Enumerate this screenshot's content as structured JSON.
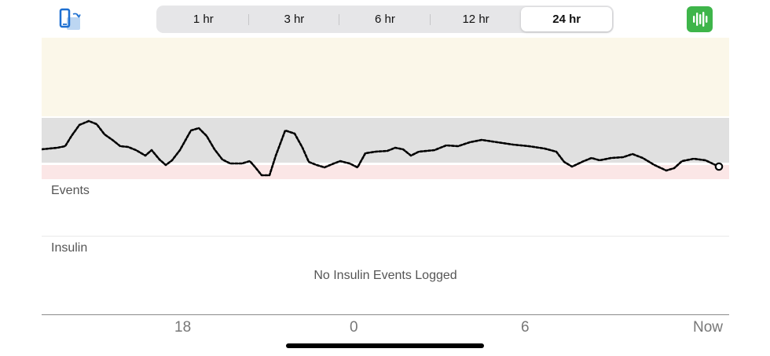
{
  "toolbar": {
    "rotate_icon": "phone-rotate-icon",
    "ranges": [
      {
        "label": "1 hr",
        "active": false
      },
      {
        "label": "3 hr",
        "active": false
      },
      {
        "label": "6 hr",
        "active": false
      },
      {
        "label": "12 hr",
        "active": false
      },
      {
        "label": "24 hr",
        "active": true
      }
    ],
    "sound_icon": "waveform-icon",
    "sound_color": "#3eb54a"
  },
  "colors": {
    "high_band": "#fbf7e9",
    "in_range_band": "#e0e0e0",
    "low_band": "#fbe6e6",
    "trace": "#000000"
  },
  "events": {
    "label": "Events"
  },
  "insulin": {
    "label": "Insulin",
    "empty_message": "No Insulin Events Logged"
  },
  "x_axis": {
    "ticks": [
      "18",
      "0",
      "6",
      "Now"
    ]
  }
}
